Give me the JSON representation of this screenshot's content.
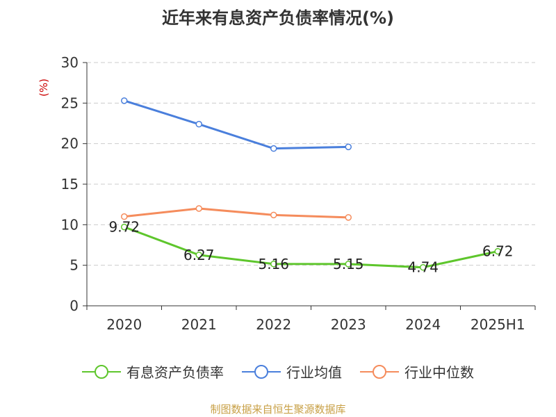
{
  "chart_data": {
    "type": "line",
    "title": "近年来有息资产负债率情况(%)",
    "ylabel": "(%)",
    "xlabel": "",
    "categories": [
      "2020",
      "2021",
      "2022",
      "2023",
      "2024",
      "2025H1"
    ],
    "ylim": [
      0,
      30
    ],
    "yticks": [
      0,
      5,
      10,
      15,
      20,
      25,
      30
    ],
    "grid": true,
    "legend_position": "bottom",
    "series": [
      {
        "name": "有息资产负债率",
        "color": "#5ec62c",
        "values": [
          9.72,
          6.27,
          5.16,
          5.15,
          4.74,
          6.72
        ],
        "labels": [
          "9.72",
          "6.27",
          "5.16",
          "5.15",
          "4.74",
          "6.72"
        ]
      },
      {
        "name": "行业均值",
        "color": "#4a7fdc",
        "values": [
          25.3,
          22.4,
          19.4,
          19.6,
          null,
          null
        ]
      },
      {
        "name": "行业中位数",
        "color": "#f58c5c",
        "values": [
          11.0,
          12.0,
          11.2,
          10.9,
          null,
          null
        ]
      }
    ]
  },
  "source": "制图数据来自恒生聚源数据库"
}
